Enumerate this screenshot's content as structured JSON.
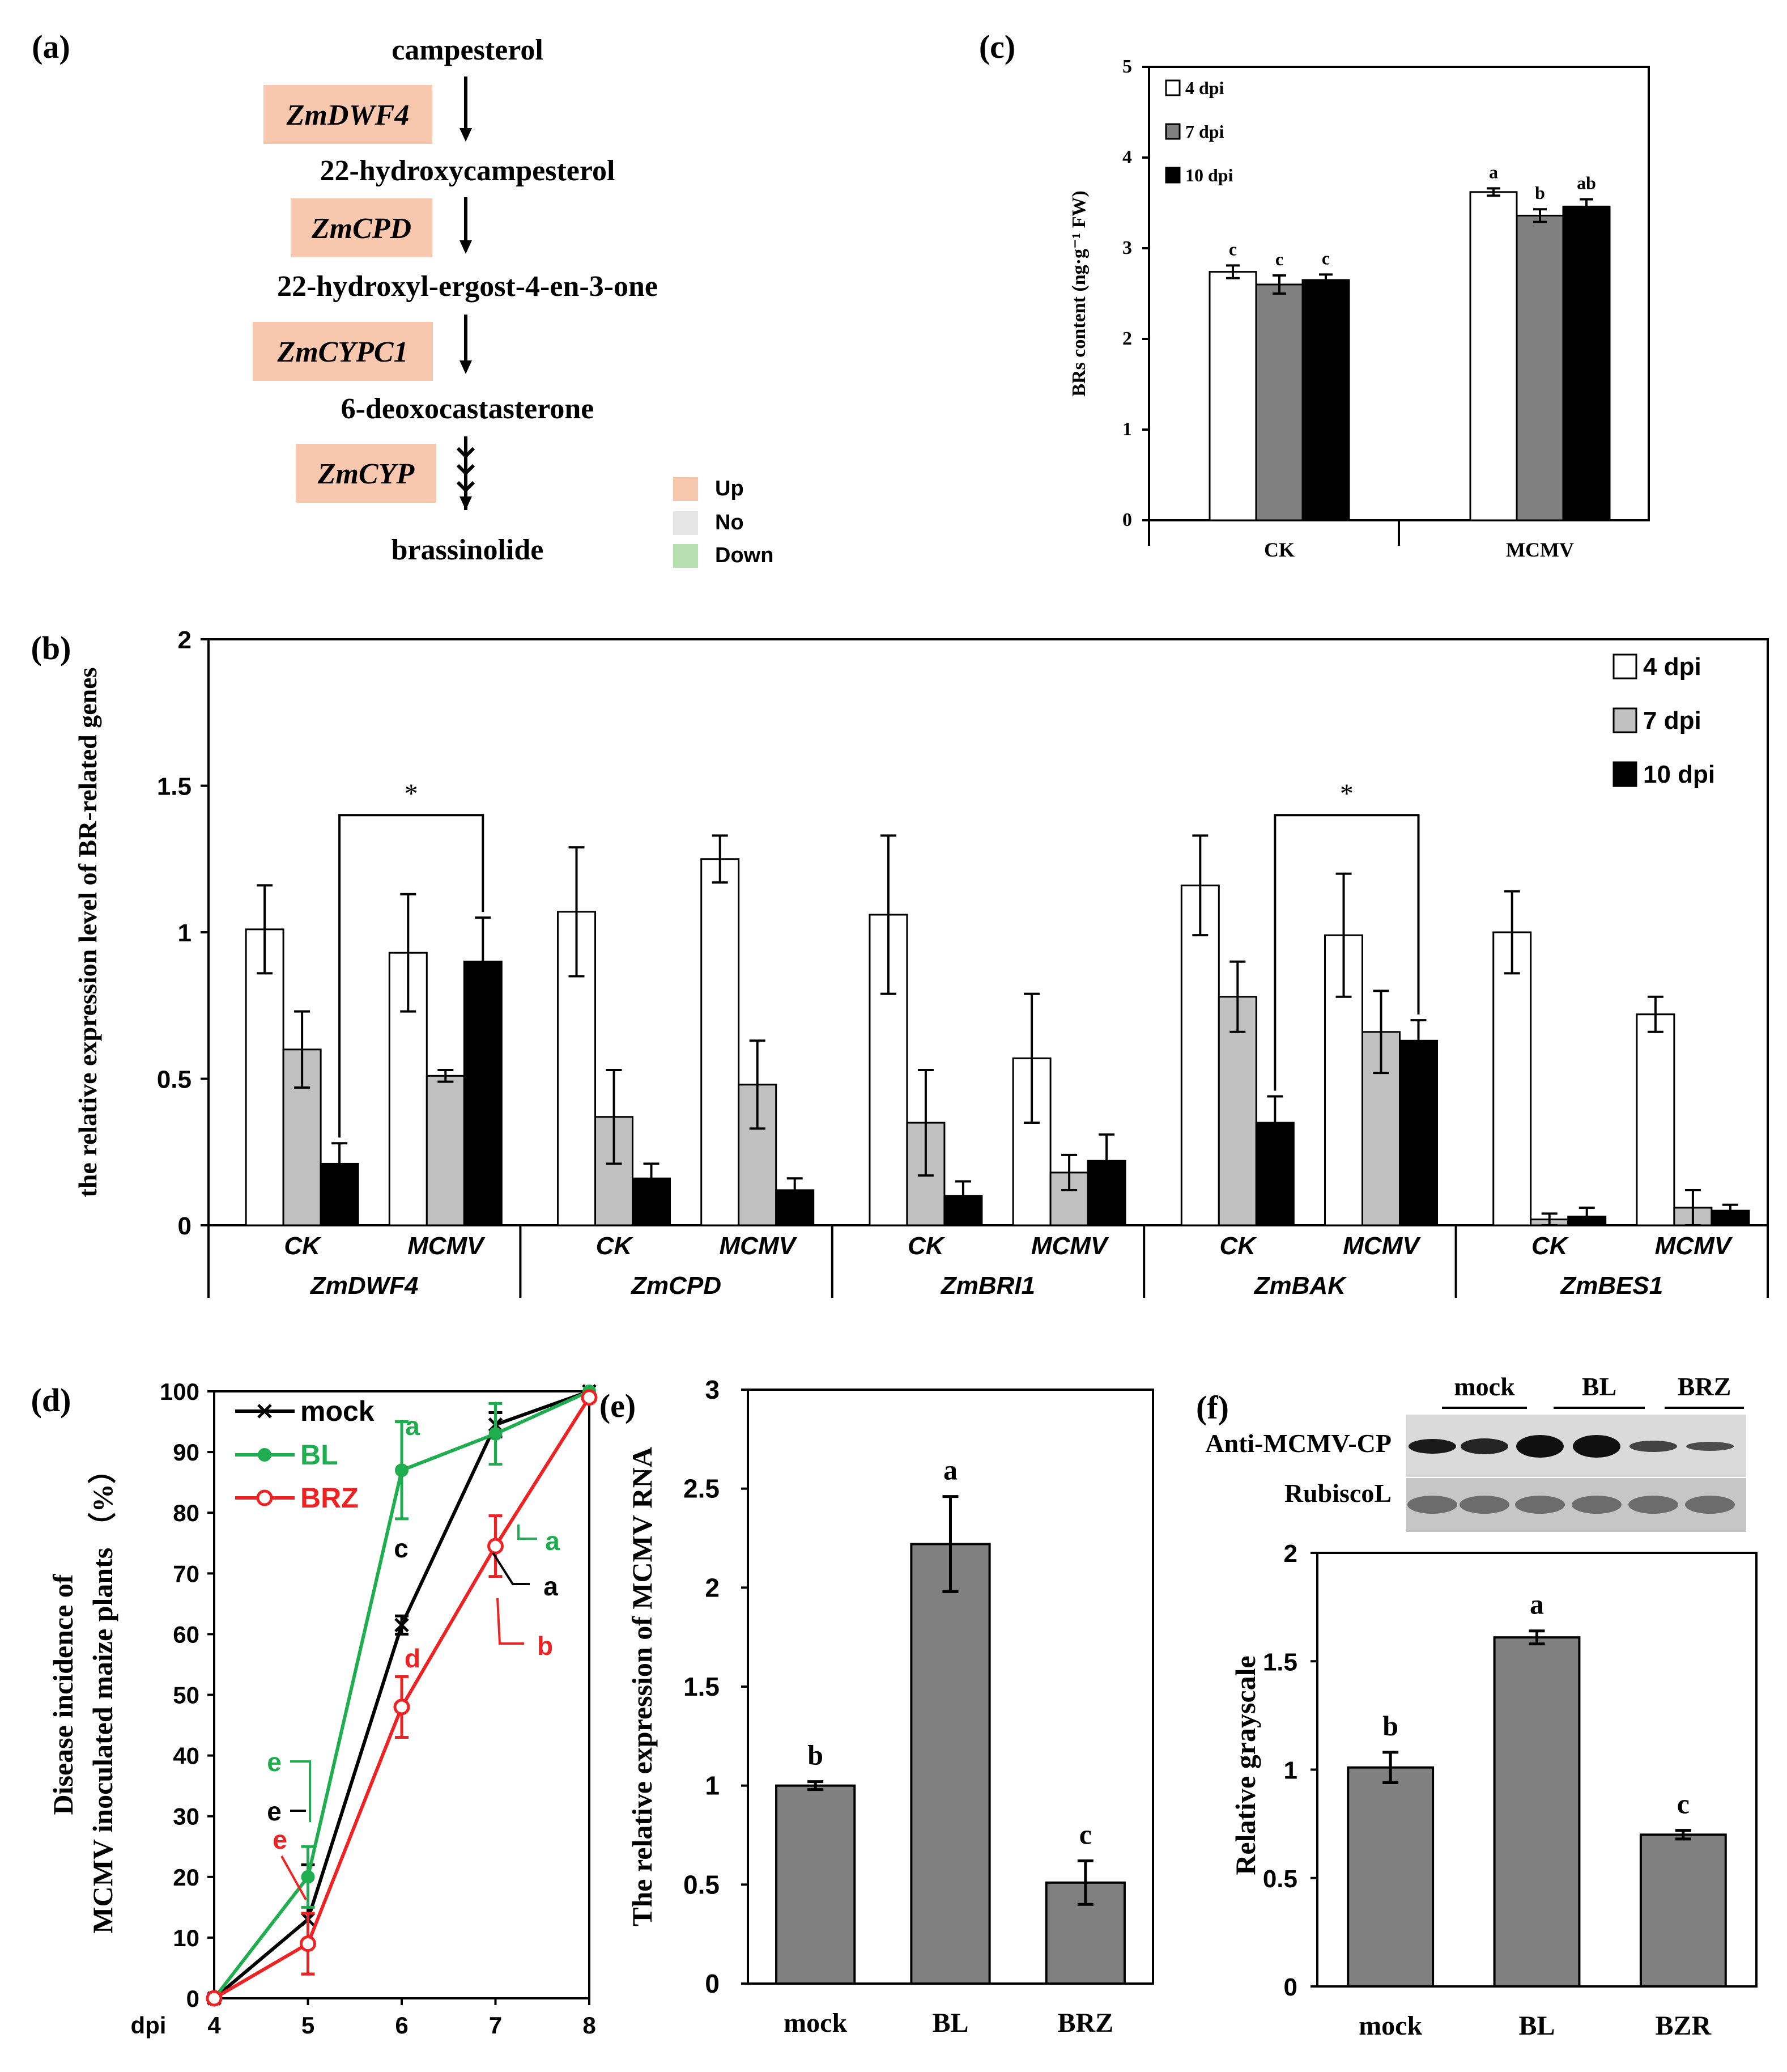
{
  "colors": {
    "up": "#F8C8AE",
    "no": "#E6E6E6",
    "down": "#B6E0B0",
    "bar_white": "#FFFFFF",
    "bar_light_gray": "#C0C0C0",
    "bar_dark_gray": "#808080",
    "bar_black": "#000000",
    "mock": "#000000",
    "bl": "#1FAE4F",
    "brz": "#EE2222"
  },
  "panels": {
    "a": {
      "label": "(a)",
      "compounds": [
        "campesterol",
        "22-hydroxycampesterol",
        "22-hydroxyl-ergost-4-en-3-one",
        "6-deoxocastasterone",
        "brassinolide"
      ],
      "enzymes": [
        "ZmDWF4",
        "ZmCPD",
        "ZmCYPC1",
        "ZmCYP"
      ],
      "legend": [
        "Up",
        "No",
        "Down"
      ]
    },
    "b": {
      "label": "(b)"
    },
    "c": {
      "label": "(c)"
    },
    "d": {
      "label": "(d)"
    },
    "e": {
      "label": "(e)"
    },
    "f": {
      "label": "(f)",
      "blot_groups": [
        "mock",
        "BL",
        "BRZ"
      ],
      "blot_rows": [
        "Anti-MCMV-CP",
        "RubiscoL"
      ]
    }
  },
  "chart_data": [
    {
      "id": "b",
      "type": "bar",
      "ylabel": "the relative expression level of BR-related genes",
      "ylim": [
        0,
        2
      ],
      "yticks": [
        "0",
        "0.5",
        "1",
        "1.5",
        "2"
      ],
      "series_names": [
        "4 dpi",
        "7 dpi",
        "10 dpi"
      ],
      "genes": [
        "ZmDWF4",
        "ZmCPD",
        "ZmBRI1",
        "ZmBAK",
        "ZmBES1"
      ],
      "conditions": [
        "CK",
        "MCMV"
      ],
      "values": [
        [
          [
            1.01,
            0.6,
            0.21
          ],
          [
            0.93,
            0.51,
            0.9
          ]
        ],
        [
          [
            1.07,
            0.37,
            0.16
          ],
          [
            1.25,
            0.48,
            0.12
          ]
        ],
        [
          [
            1.06,
            0.35,
            0.1
          ],
          [
            0.57,
            0.18,
            0.22
          ]
        ],
        [
          [
            1.16,
            0.78,
            0.35
          ],
          [
            0.99,
            0.66,
            0.63
          ]
        ],
        [
          [
            1.0,
            0.02,
            0.03
          ],
          [
            0.72,
            0.06,
            0.05
          ]
        ]
      ],
      "errors": [
        [
          [
            0.15,
            0.13,
            0.07
          ],
          [
            0.2,
            0.02,
            0.15
          ]
        ],
        [
          [
            0.22,
            0.16,
            0.05
          ],
          [
            0.08,
            0.15,
            0.04
          ]
        ],
        [
          [
            0.27,
            0.18,
            0.05
          ],
          [
            0.22,
            0.06,
            0.09
          ]
        ],
        [
          [
            0.17,
            0.12,
            0.09
          ],
          [
            0.21,
            0.14,
            0.07
          ]
        ],
        [
          [
            0.14,
            0.02,
            0.03
          ],
          [
            0.06,
            0.06,
            0.02
          ]
        ]
      ],
      "significance": [
        {
          "gene": 0,
          "from": [
            0,
            2
          ],
          "to": [
            1,
            2
          ],
          "label": "*"
        },
        {
          "gene": 3,
          "from": [
            0,
            2
          ],
          "to": [
            1,
            2
          ],
          "label": "*"
        }
      ]
    },
    {
      "id": "c",
      "type": "bar",
      "ylabel": "BRs content (ng·g⁻¹ FW)",
      "ylim": [
        0,
        5
      ],
      "yticks": [
        "0",
        "1",
        "2",
        "3",
        "4",
        "5"
      ],
      "categories": [
        "CK",
        "MCMV"
      ],
      "series": [
        {
          "name": "4 dpi",
          "values": [
            2.74,
            3.62
          ],
          "errors": [
            0.07,
            0.04
          ],
          "letters": [
            "c",
            "a"
          ]
        },
        {
          "name": "7 dpi",
          "values": [
            2.6,
            3.36
          ],
          "errors": [
            0.1,
            0.07
          ],
          "letters": [
            "c",
            "b"
          ]
        },
        {
          "name": "10 dpi",
          "values": [
            2.65,
            3.46
          ],
          "errors": [
            0.06,
            0.08
          ],
          "letters": [
            "c",
            "ab"
          ]
        }
      ]
    },
    {
      "id": "d",
      "type": "line",
      "xlabel": "dpi",
      "ylabel_lines": [
        "Disease incidence of",
        "MCMV inoculated maize plants （%）"
      ],
      "x": [
        4,
        5,
        6,
        7,
        8
      ],
      "ylim": [
        0,
        100
      ],
      "yticks": [
        "0",
        "10",
        "20",
        "30",
        "40",
        "50",
        "60",
        "70",
        "80",
        "90",
        "100"
      ],
      "xticks": [
        "4",
        "5",
        "6",
        "7",
        "8"
      ],
      "series": [
        {
          "name": "mock",
          "values": [
            0,
            13,
            61.5,
            94.5,
            100
          ],
          "errors": [
            0,
            9,
            1.5,
            2,
            0
          ]
        },
        {
          "name": "BL",
          "values": [
            0,
            20,
            87,
            93,
            100
          ],
          "errors": [
            0,
            5,
            8,
            5,
            0
          ]
        },
        {
          "name": "BRZ",
          "values": [
            0,
            9,
            48,
            74.5,
            99
          ],
          "errors": [
            0,
            5,
            5,
            5,
            0
          ]
        }
      ],
      "letters": {
        "mock": [
          "e",
          "c",
          "a"
        ],
        "bl": [
          "e",
          "a",
          "a"
        ],
        "brz": [
          "e",
          "d",
          "b"
        ]
      }
    },
    {
      "id": "e",
      "type": "bar",
      "ylabel": "The relative expression of  MCMV RNA",
      "ylim": [
        0,
        3
      ],
      "yticks": [
        "0",
        "0.5",
        "1",
        "1.5",
        "2",
        "2.5",
        "3"
      ],
      "categories": [
        "mock",
        "BL",
        "BRZ"
      ],
      "values": [
        1.0,
        2.22,
        0.51
      ],
      "errors": [
        0.02,
        0.24,
        0.11
      ],
      "letters": [
        "b",
        "a",
        "c"
      ]
    },
    {
      "id": "f",
      "type": "bar",
      "ylabel": "Relative grayscale",
      "ylim": [
        0,
        2
      ],
      "yticks": [
        "0",
        "0.5",
        "1",
        "1.5",
        "2"
      ],
      "categories": [
        "mock",
        "BL",
        "BZR"
      ],
      "values": [
        1.01,
        1.61,
        0.7
      ],
      "errors": [
        0.07,
        0.03,
        0.02
      ],
      "letters": [
        "b",
        "a",
        "c"
      ]
    }
  ]
}
